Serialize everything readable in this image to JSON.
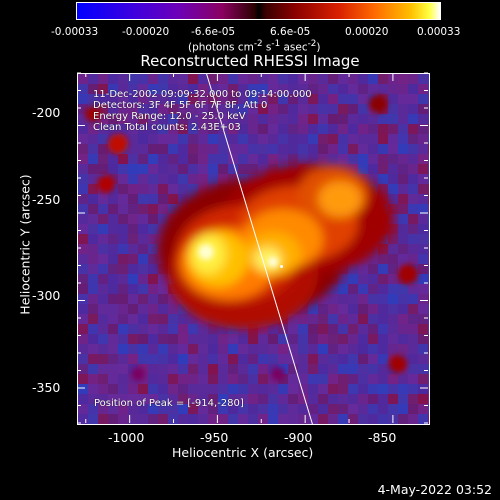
{
  "colorbar": {
    "ticks": [
      "-0.00033",
      "-0.00020",
      "-6.6e-05",
      "6.6e-05",
      "0.00020",
      "0.00033"
    ],
    "unit_parts": [
      "(photons cm",
      "-2",
      " s",
      "-1",
      " asec",
      "-2",
      ")"
    ]
  },
  "image": {
    "title": "Reconstructed RHESSI Image",
    "info_lines": [
      "11-Dec-2002 09:09:32.000 to 09:14:00.000",
      "Detectors: 3F 4F 5F 6F 7F 8F, Att 0",
      "Energy Range: 12.0 - 25.0 keV",
      "Clean    Total counts: 2.43E+03"
    ],
    "peak_label": "Position of Peak = [-914,-280]",
    "peak": {
      "x": -914,
      "y": -280
    }
  },
  "axes": {
    "xlabel": "Heliocentric X (arcsec)",
    "ylabel": "Heliocentric Y (arcsec)",
    "xticks": [
      "-1000",
      "-950",
      "-900",
      "-850"
    ],
    "yticks": [
      "-200",
      "-250",
      "-300",
      "-350"
    ],
    "xlim": [
      -1030,
      -830
    ],
    "ylim": [
      -370,
      -170
    ]
  },
  "footer": {
    "timestamp": "4-May-2022 03:52"
  }
}
